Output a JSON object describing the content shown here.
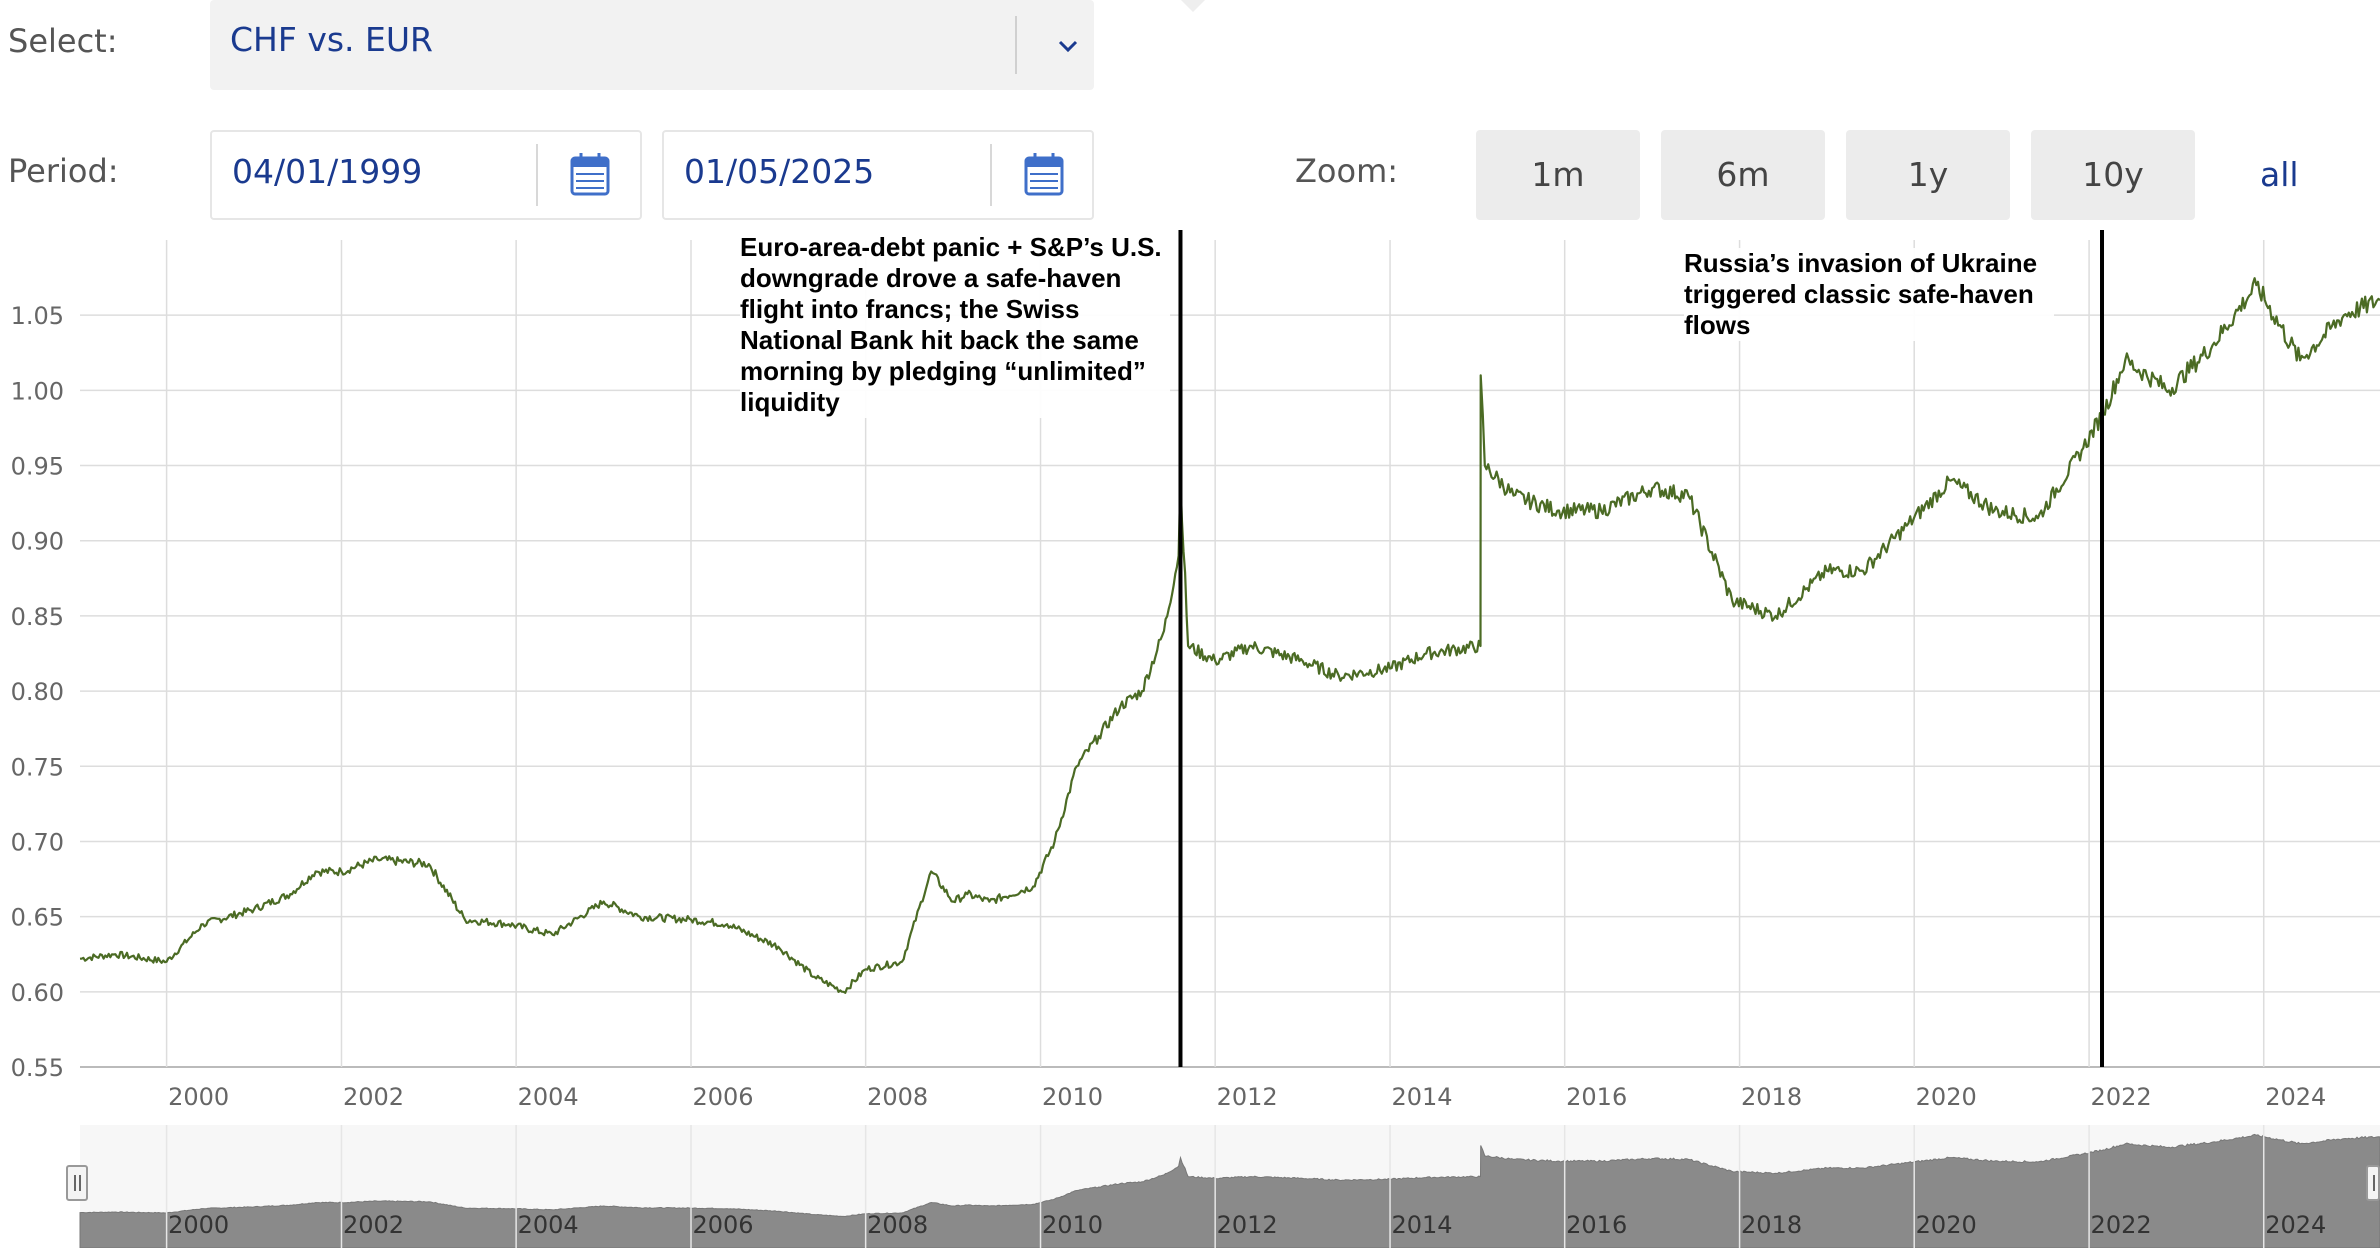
{
  "controls": {
    "select_label": "Select:",
    "select_value": "CHF vs. EUR",
    "period_label": "Period:",
    "start_date": "04/01/1999",
    "end_date": "01/05/2025",
    "zoom_label": "Zoom:",
    "zoom_buttons": [
      "1m",
      "6m",
      "1y",
      "10y",
      "all"
    ]
  },
  "colors": {
    "line": "#4b6b24",
    "grid": "#dddddd",
    "navigator_fill": "#8a8a8a",
    "accent": "#1a3a8f"
  },
  "chart_data": {
    "type": "line",
    "title": "",
    "xlabel": "",
    "ylabel": "",
    "xlim": [
      "1999-01-04",
      "2025-05-01"
    ],
    "ylim": [
      0.55,
      1.1
    ],
    "x_ticks": [
      "2000",
      "2002",
      "2004",
      "2006",
      "2008",
      "2010",
      "2012",
      "2014",
      "2016",
      "2018",
      "2020",
      "2022",
      "2024"
    ],
    "y_ticks": [
      "0.55",
      "0.60",
      "0.65",
      "0.70",
      "0.75",
      "0.80",
      "0.85",
      "0.90",
      "0.95",
      "1.00",
      "1.05"
    ],
    "grid": true,
    "series": [
      {
        "name": "",
        "x": [
          "1999-01-04",
          "1999-06-01",
          "2000-01-01",
          "2000-06-01",
          "2001-01-01",
          "2001-06-01",
          "2001-09-15",
          "2002-01-01",
          "2002-06-01",
          "2003-01-01",
          "2003-06-01",
          "2003-12-01",
          "2004-06-01",
          "2005-01-01",
          "2005-06-01",
          "2006-01-01",
          "2006-06-01",
          "2007-01-01",
          "2007-06-01",
          "2007-10-01",
          "2008-01-01",
          "2008-06-01",
          "2008-10-01",
          "2009-01-01",
          "2009-03-01",
          "2009-06-01",
          "2009-12-01",
          "2010-03-01",
          "2010-06-01",
          "2010-09-01",
          "2010-12-01",
          "2011-03-01",
          "2011-06-01",
          "2011-08-01",
          "2011-08-09",
          "2011-09-10",
          "2012-01-01",
          "2012-06-01",
          "2013-01-01",
          "2013-06-01",
          "2014-01-01",
          "2014-06-01",
          "2015-01-14",
          "2015-01-15",
          "2015-02-01",
          "2015-06-01",
          "2015-12-01",
          "2016-06-01",
          "2017-01-01",
          "2017-06-01",
          "2017-12-01",
          "2018-06-01",
          "2019-01-01",
          "2019-06-01",
          "2019-12-01",
          "2020-06-01",
          "2020-12-01",
          "2021-06-01",
          "2021-12-01",
          "2022-03-01",
          "2022-06-01",
          "2022-12-01",
          "2023-06-01",
          "2023-12-01",
          "2024-06-01",
          "2024-12-01",
          "2025-05-01"
        ],
        "y": [
          0.622,
          0.625,
          0.62,
          0.645,
          0.655,
          0.665,
          0.68,
          0.68,
          0.688,
          0.685,
          0.648,
          0.645,
          0.638,
          0.66,
          0.65,
          0.648,
          0.645,
          0.63,
          0.61,
          0.6,
          0.615,
          0.62,
          0.68,
          0.66,
          0.665,
          0.66,
          0.67,
          0.7,
          0.75,
          0.77,
          0.79,
          0.8,
          0.84,
          0.89,
          0.94,
          0.83,
          0.82,
          0.83,
          0.82,
          0.81,
          0.815,
          0.825,
          0.83,
          1.01,
          0.95,
          0.93,
          0.92,
          0.92,
          0.935,
          0.93,
          0.86,
          0.85,
          0.88,
          0.88,
          0.91,
          0.94,
          0.92,
          0.915,
          0.96,
          0.985,
          1.02,
          1.0,
          1.03,
          1.07,
          1.02,
          1.05,
          1.06
        ]
      }
    ],
    "annotations": [
      {
        "x": "2011-08-09",
        "text": "Euro-area-debt panic + S&P’s U.S. downgrade drove a safe-haven flight into francs; the Swiss National Bank hit back the same morning by pledging “unlimited” liquidity"
      },
      {
        "x": "2022-02-24",
        "text": "Russia’s invasion of Ukraine triggered classic safe-haven flows"
      }
    ]
  },
  "navigator": {
    "x_ticks": [
      "2000",
      "2002",
      "2004",
      "2006",
      "2008",
      "2010",
      "2012",
      "2014",
      "2016",
      "2018",
      "2020",
      "2022",
      "2024"
    ]
  }
}
